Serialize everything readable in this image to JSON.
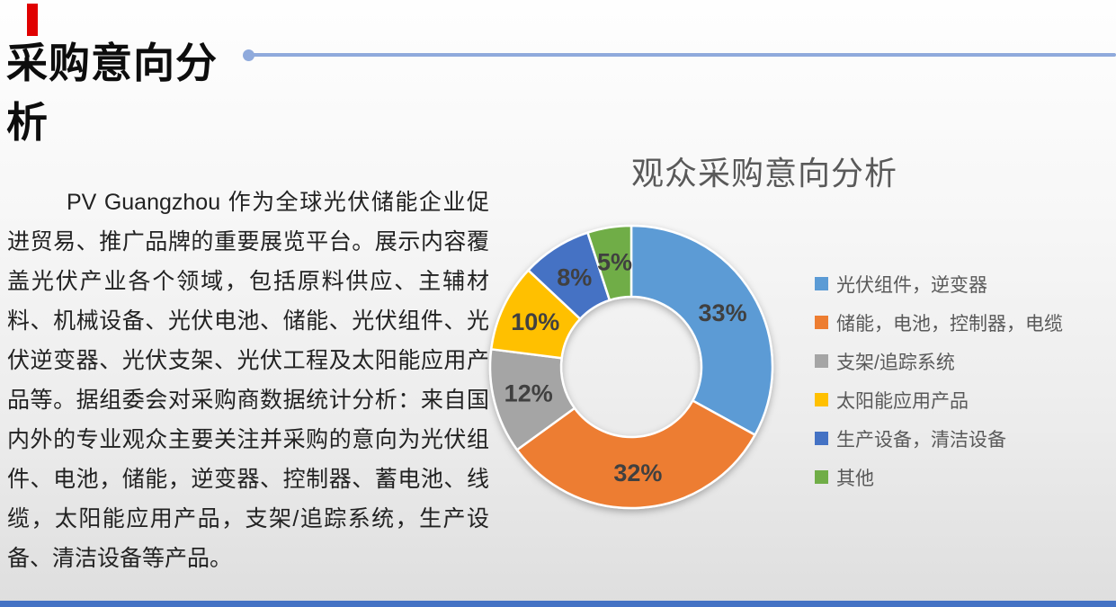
{
  "slide": {
    "title": "采购意向分析",
    "title_color": "#0d0d0d",
    "accent_red_bar_color": "#e00000",
    "title_line_color": "#8faadc",
    "footer_bar_color": "#4472c4",
    "paragraph": "PV Guangzhou 作为全球光伏储能企业促进贸易、推广品牌的重要展览平台。展示内容覆盖光伏产业各个领域，包括原料供应、主辅材料、机械设备、光伏电池、储能、光伏组件、光伏逆变器、光伏支架、光伏工程及太阳能应用产品等。据组委会对采购商数据统计分析：来自国内外的专业观众主要关注并采购的意向为光伏组件、电池，储能，逆变器、控制器、蓄电池、线缆，太阳能应用产品，支架/追踪系统，生产设备、清洁设备等产品。"
  },
  "chart_data": {
    "type": "pie",
    "subtype": "donut",
    "title": "观众采购意向分析",
    "title_color": "#595959",
    "legend_position": "right",
    "label_color": "#404040",
    "categories": [
      "光伏组件，逆变器",
      "储能，电池，控制器，电缆",
      "支架/追踪系统",
      "太阳能应用产品",
      "生产设备，清洁设备",
      "其他"
    ],
    "values": [
      33,
      32,
      12,
      10,
      8,
      5
    ],
    "labels": [
      "33%",
      "32%",
      "12%",
      "10%",
      "8%",
      "5%"
    ],
    "colors": [
      "#5B9BD5",
      "#ED7D31",
      "#A5A5A5",
      "#FFC000",
      "#4472C4",
      "#70AD47"
    ]
  }
}
